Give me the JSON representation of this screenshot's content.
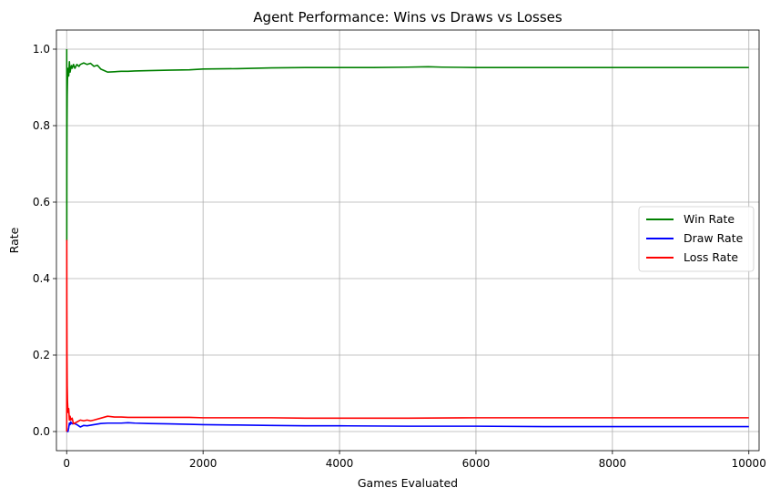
{
  "chart_data": {
    "type": "line",
    "title": "Agent Performance: Wins vs Draws vs Losses",
    "xlabel": "Games Evaluated",
    "ylabel": "Rate",
    "xlim": [
      -150,
      10150
    ],
    "ylim": [
      -0.05,
      1.05
    ],
    "xticks": [
      0,
      2000,
      4000,
      6000,
      8000,
      10000
    ],
    "yticks": [
      0.0,
      0.2,
      0.4,
      0.6,
      0.8,
      1.0
    ],
    "xtick_labels": [
      "0",
      "2000",
      "4000",
      "6000",
      "8000",
      "10000"
    ],
    "ytick_labels": [
      "0.0",
      "0.2",
      "0.4",
      "0.6",
      "0.8",
      "1.0"
    ],
    "grid": true,
    "legend_position": "center-right",
    "series": [
      {
        "name": "Win Rate",
        "color": "#008000",
        "x": [
          1,
          2,
          3,
          5,
          8,
          12,
          20,
          30,
          40,
          50,
          60,
          70,
          80,
          100,
          120,
          150,
          180,
          200,
          250,
          300,
          350,
          400,
          450,
          500,
          550,
          600,
          700,
          800,
          900,
          1000,
          1200,
          1500,
          1800,
          2000,
          2500,
          3000,
          3500,
          4000,
          4500,
          5000,
          5300,
          5500,
          6000,
          7000,
          8000,
          9000,
          10000
        ],
        "values": [
          1.0,
          0.5,
          0.67,
          0.8,
          0.88,
          0.92,
          0.95,
          0.93,
          0.967,
          0.94,
          0.95,
          0.957,
          0.95,
          0.96,
          0.95,
          0.96,
          0.955,
          0.96,
          0.964,
          0.96,
          0.963,
          0.955,
          0.958,
          0.948,
          0.944,
          0.94,
          0.941,
          0.942,
          0.942,
          0.943,
          0.944,
          0.945,
          0.946,
          0.948,
          0.949,
          0.951,
          0.952,
          0.952,
          0.952,
          0.953,
          0.954,
          0.953,
          0.952,
          0.952,
          0.952,
          0.952,
          0.952
        ]
      },
      {
        "name": "Draw Rate",
        "color": "#0000ff",
        "x": [
          1,
          5,
          10,
          20,
          30,
          40,
          50,
          60,
          80,
          100,
          150,
          200,
          250,
          300,
          400,
          500,
          600,
          700,
          800,
          900,
          1000,
          1200,
          1500,
          1800,
          2000,
          2500,
          3000,
          3500,
          4000,
          5000,
          6000,
          7000,
          8000,
          9000,
          10000
        ],
        "values": [
          0.0,
          0.0,
          0.0,
          0.0,
          0.01,
          0.022,
          0.018,
          0.025,
          0.02,
          0.022,
          0.018,
          0.012,
          0.016,
          0.015,
          0.018,
          0.021,
          0.022,
          0.022,
          0.022,
          0.023,
          0.022,
          0.021,
          0.02,
          0.019,
          0.018,
          0.017,
          0.016,
          0.015,
          0.015,
          0.014,
          0.014,
          0.013,
          0.013,
          0.013,
          0.013
        ]
      },
      {
        "name": "Loss Rate",
        "color": "#ff0000",
        "x": [
          1,
          2,
          3,
          5,
          8,
          12,
          20,
          30,
          40,
          50,
          60,
          80,
          100,
          150,
          200,
          250,
          300,
          350,
          400,
          500,
          600,
          700,
          800,
          900,
          1000,
          1200,
          1500,
          1800,
          2000,
          2500,
          3000,
          3500,
          4000,
          5000,
          6000,
          7000,
          8000,
          9000,
          10000
        ],
        "values": [
          0.0,
          0.5,
          0.33,
          0.2,
          0.12,
          0.08,
          0.05,
          0.06,
          0.03,
          0.04,
          0.03,
          0.035,
          0.02,
          0.025,
          0.03,
          0.028,
          0.03,
          0.028,
          0.03,
          0.035,
          0.04,
          0.038,
          0.038,
          0.037,
          0.037,
          0.037,
          0.037,
          0.037,
          0.036,
          0.036,
          0.036,
          0.035,
          0.035,
          0.035,
          0.036,
          0.036,
          0.036,
          0.036,
          0.036
        ]
      }
    ]
  }
}
